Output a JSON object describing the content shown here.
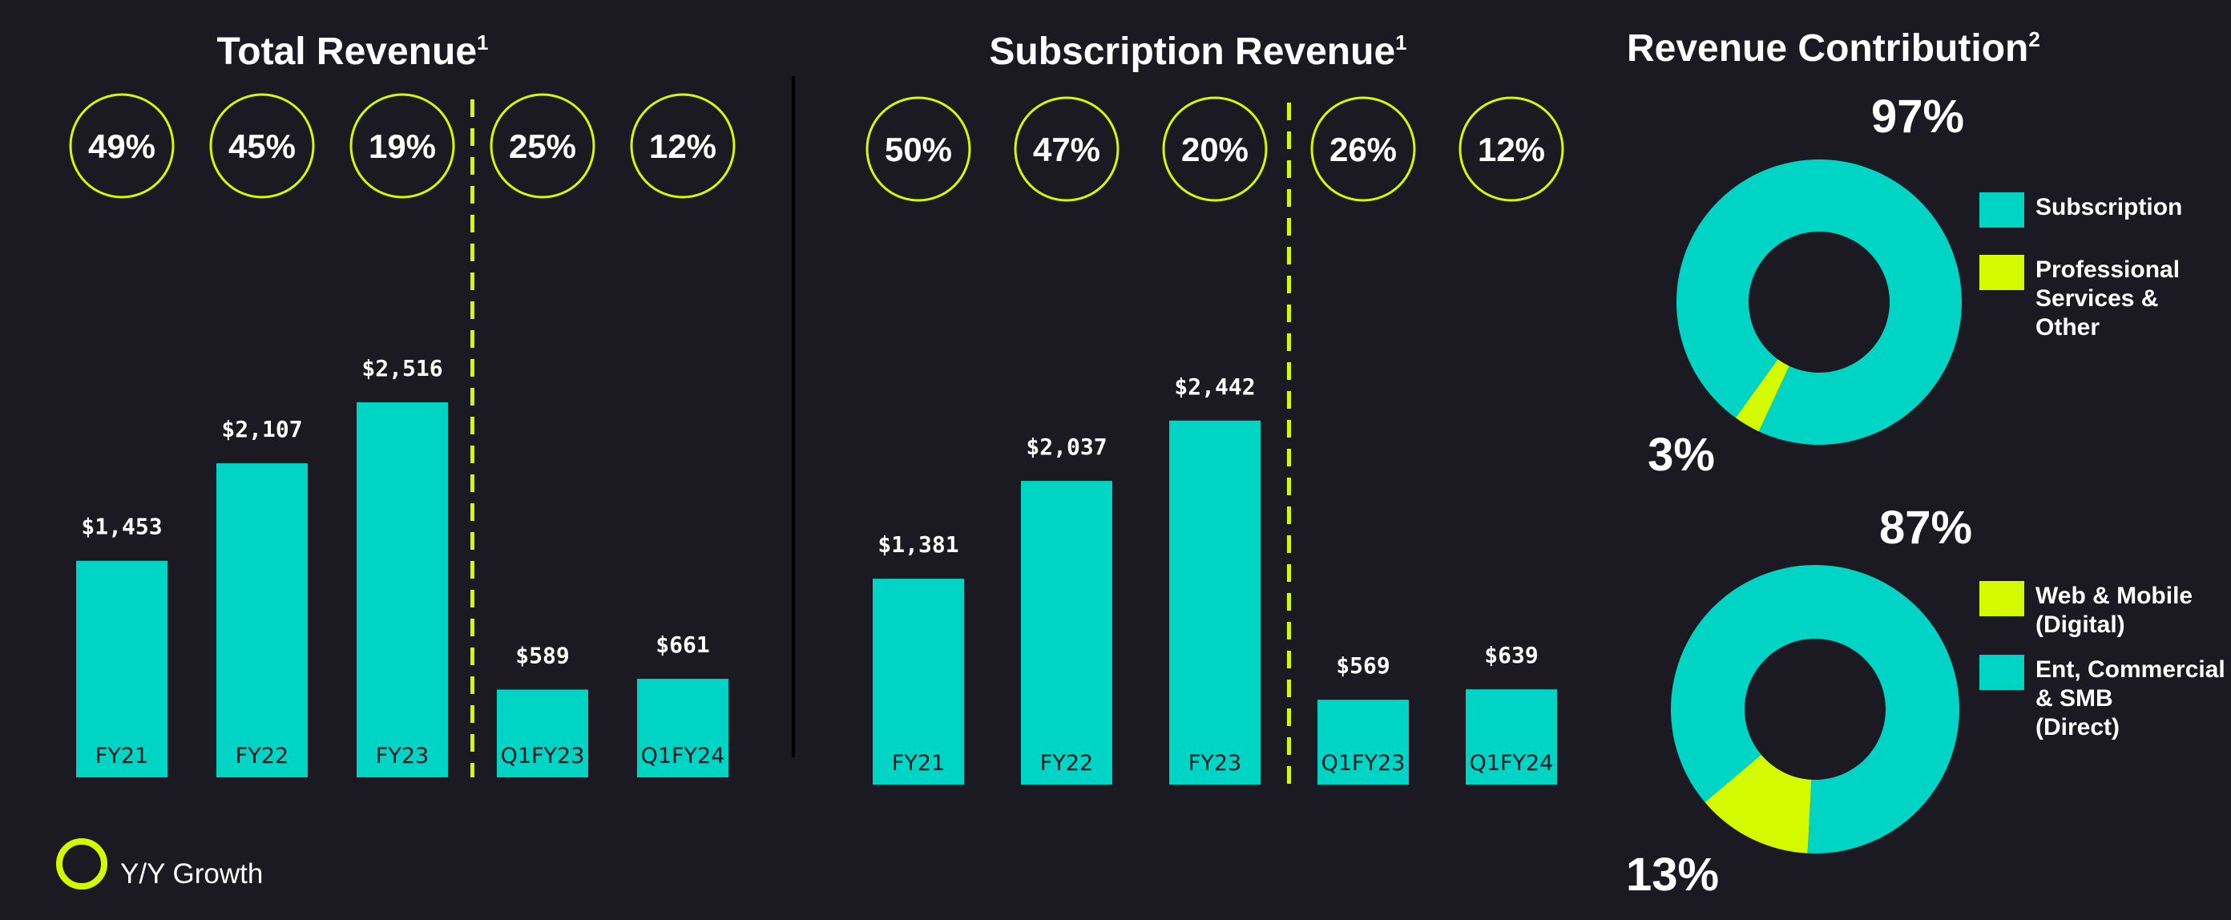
{
  "colors": {
    "background": "#1b1a22",
    "teal": "#00d4c4",
    "lime": "#d4fa00",
    "text": "#ffffff",
    "tick_text": "#1b1a22"
  },
  "legend": {
    "yy_growth_label": "Y/Y Growth"
  },
  "chart_data": [
    {
      "type": "bar",
      "title": "Total Revenue",
      "title_superscript": "1",
      "categories": [
        "FY21",
        "FY22",
        "FY23",
        "Q1FY23",
        "Q1FY24"
      ],
      "values": [
        1453,
        2107,
        2516,
        589,
        661
      ],
      "value_labels": [
        "$1,453",
        "$2,107",
        "$2,516",
        "$589",
        "$661"
      ],
      "growth_labels": [
        "49%",
        "45%",
        "19%",
        "25%",
        "12%"
      ],
      "separator_after_index": 2
    },
    {
      "type": "bar",
      "title": "Subscription Revenue",
      "title_superscript": "1",
      "categories": [
        "FY21",
        "FY22",
        "FY23",
        "Q1FY23",
        "Q1FY24"
      ],
      "values": [
        1381,
        2037,
        2442,
        569,
        639
      ],
      "value_labels": [
        "$1,381",
        "$2,037",
        "$2,442",
        "$569",
        "$639"
      ],
      "growth_labels": [
        "50%",
        "47%",
        "20%",
        "26%",
        "12%"
      ],
      "separator_after_index": 2
    },
    {
      "type": "pie",
      "variant": "donut",
      "title": "Revenue Contribution",
      "title_superscript": "2",
      "slices": [
        {
          "name": "Subscription",
          "value": 97,
          "label": "97%",
          "color": "#00d4c4"
        },
        {
          "name": "Professional Services & Other",
          "value": 3,
          "label": "3%",
          "color": "#d4fa00"
        }
      ],
      "legend": [
        {
          "lines": [
            "Subscription"
          ],
          "color": "#00d4c4"
        },
        {
          "lines": [
            "Professional",
            "Services &",
            "Other"
          ],
          "color": "#d4fa00"
        }
      ]
    },
    {
      "type": "pie",
      "variant": "donut",
      "slices": [
        {
          "name": "Ent, Commercial & SMB (Direct)",
          "value": 87,
          "label": "87%",
          "color": "#00d4c4"
        },
        {
          "name": "Web & Mobile (Digital)",
          "value": 13,
          "label": "13%",
          "color": "#d4fa00"
        }
      ],
      "legend": [
        {
          "lines": [
            "Web & Mobile",
            "(Digital)"
          ],
          "color": "#d4fa00"
        },
        {
          "lines": [
            "Ent, Commercial",
            "& SMB",
            " (Direct)"
          ],
          "color": "#00d4c4"
        }
      ]
    }
  ]
}
